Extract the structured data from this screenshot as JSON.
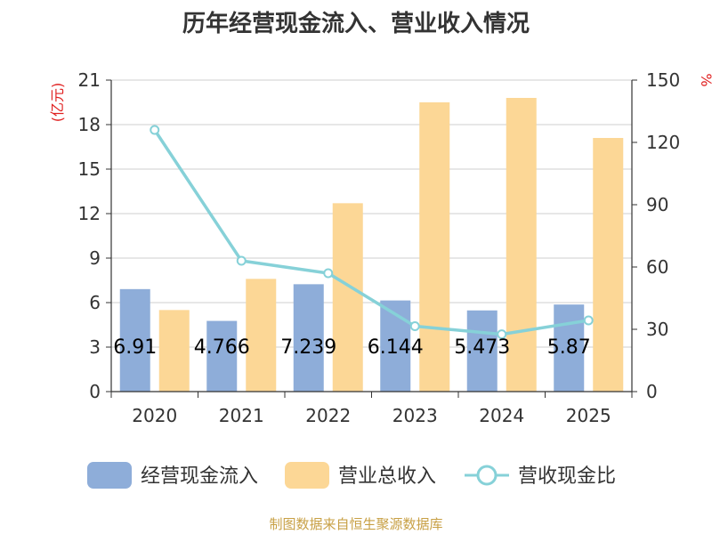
{
  "title": "历年经营现金流入、营业收入情况",
  "footer": "制图数据来自恒生聚源数据库",
  "chart_data": {
    "type": "bar",
    "categories": [
      "2020",
      "2021",
      "2022",
      "2023",
      "2024",
      "2025"
    ],
    "series": [
      {
        "name": "经营现金流入",
        "axis": "left",
        "type": "bar",
        "color": "#8eadd9",
        "values": [
          6.91,
          4.766,
          7.239,
          6.144,
          5.473,
          5.87
        ]
      },
      {
        "name": "营业总收入",
        "axis": "left",
        "type": "bar",
        "color": "#fcd796",
        "values": [
          5.5,
          7.6,
          12.7,
          19.5,
          19.8,
          17.1
        ]
      },
      {
        "name": "营收现金比",
        "axis": "right",
        "type": "line",
        "color": "#86d1d8",
        "values": [
          126,
          63,
          57,
          31.5,
          27.6,
          34.3
        ]
      }
    ],
    "data_labels": [
      "6.91",
      "4.766",
      "7.239",
      "6.144",
      "5.473",
      "5.87"
    ],
    "y_left": {
      "label": "(亿元)",
      "min": 0,
      "max": 21,
      "ticks": [
        "0",
        "3",
        "6",
        "9",
        "12",
        "15",
        "18",
        "21"
      ]
    },
    "y_right": {
      "label": "%",
      "min": 0,
      "max": 150,
      "ticks": [
        "0",
        "30",
        "60",
        "90",
        "120",
        "150"
      ]
    },
    "grid": true,
    "legend_position": "bottom"
  }
}
